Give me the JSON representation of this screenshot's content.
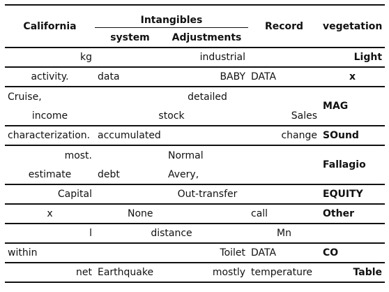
{
  "header": {
    "col1": "California",
    "group": "Intangibles",
    "sub1": "system",
    "sub2": "Adjustments",
    "col4": "Record",
    "col5": "vegetation"
  },
  "rows": [
    {
      "c1": "kg",
      "c2": "",
      "c3": "industrial",
      "c4": "",
      "c5": "Light"
    },
    {
      "c1": "activity.",
      "c2": "data",
      "c3": "BABY",
      "c4": "DATA",
      "c5": "x"
    },
    {
      "c1": "Cruise,",
      "c2": "",
      "c3": "detailed",
      "c4": "",
      "c5": "MAG"
    },
    {
      "c1": "income",
      "c2": "",
      "c3": "stock",
      "c4": "Sales",
      "c5": ""
    },
    {
      "c1": "characterization.",
      "c2": "accumulated",
      "c3": "",
      "c4": "change",
      "c5": "SOund"
    },
    {
      "c1": "most.",
      "c2": "",
      "c3": "Normal",
      "c4": "",
      "c5": "Fallagio"
    },
    {
      "c1": "estimate",
      "c2": "debt",
      "c3": "Avery,",
      "c4": "",
      "c5": ""
    },
    {
      "c1": "Capital",
      "c2": "",
      "c3": "Out-transfer",
      "c4": "",
      "c5": "EQUITY"
    },
    {
      "c1": "x",
      "c2": "None",
      "c3": "",
      "c4": "call",
      "c5": "Other"
    },
    {
      "c1": "l",
      "c2": "distance",
      "c3": "",
      "c4": "Mn",
      "c5": ""
    },
    {
      "c1": "within",
      "c2": "",
      "c3": "Toilet",
      "c4": "DATA",
      "c5": "CO"
    },
    {
      "c1": "net",
      "c2": "Earthquake",
      "c3": "mostly",
      "c4": "temperature",
      "c5": "Table"
    }
  ]
}
